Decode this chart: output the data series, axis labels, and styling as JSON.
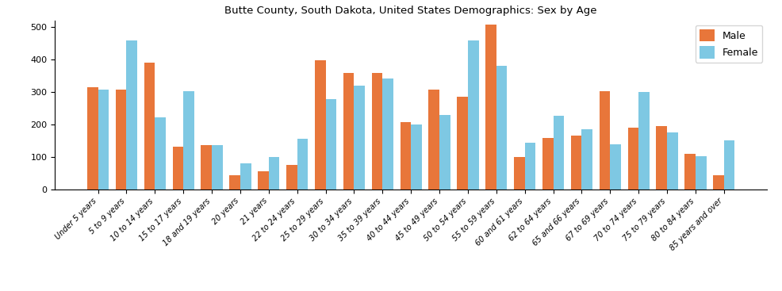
{
  "title": "Butte County, South Dakota, United States Demographics: Sex by Age",
  "categories": [
    "Under 5 years",
    "5 to 9 years",
    "10 to 14 years",
    "15 to 17 years",
    "18 and 19 years",
    "20 years",
    "21 years",
    "22 to 24 years",
    "25 to 29 years",
    "30 to 34 years",
    "35 to 39 years",
    "40 to 44 years",
    "45 to 49 years",
    "50 to 54 years",
    "55 to 59 years",
    "60 and 61 years",
    "62 to 64 years",
    "65 and 66 years",
    "67 to 69 years",
    "70 to 74 years",
    "75 to 79 years",
    "80 to 84 years",
    "85 years and over"
  ],
  "male": [
    314,
    306,
    389,
    132,
    136,
    42,
    55,
    75,
    396,
    358,
    358,
    207,
    307,
    285,
    507,
    100,
    158,
    165,
    301,
    190,
    194,
    108,
    42
  ],
  "female": [
    306,
    457,
    222,
    302,
    135,
    80,
    98,
    156,
    277,
    319,
    341,
    199,
    228,
    458,
    379,
    143,
    226,
    184,
    139,
    300,
    175,
    102,
    150
  ],
  "male_color": "#E8763A",
  "female_color": "#7EC8E3",
  "bar_width": 0.38,
  "ylim": [
    0,
    520
  ],
  "yticks": [
    0,
    100,
    200,
    300,
    400,
    500
  ],
  "legend_labels": [
    "Male",
    "Female"
  ],
  "title_fontsize": 9.5,
  "tick_fontsize": 7,
  "legend_fontsize": 9,
  "ylabel_fontsize": 9
}
